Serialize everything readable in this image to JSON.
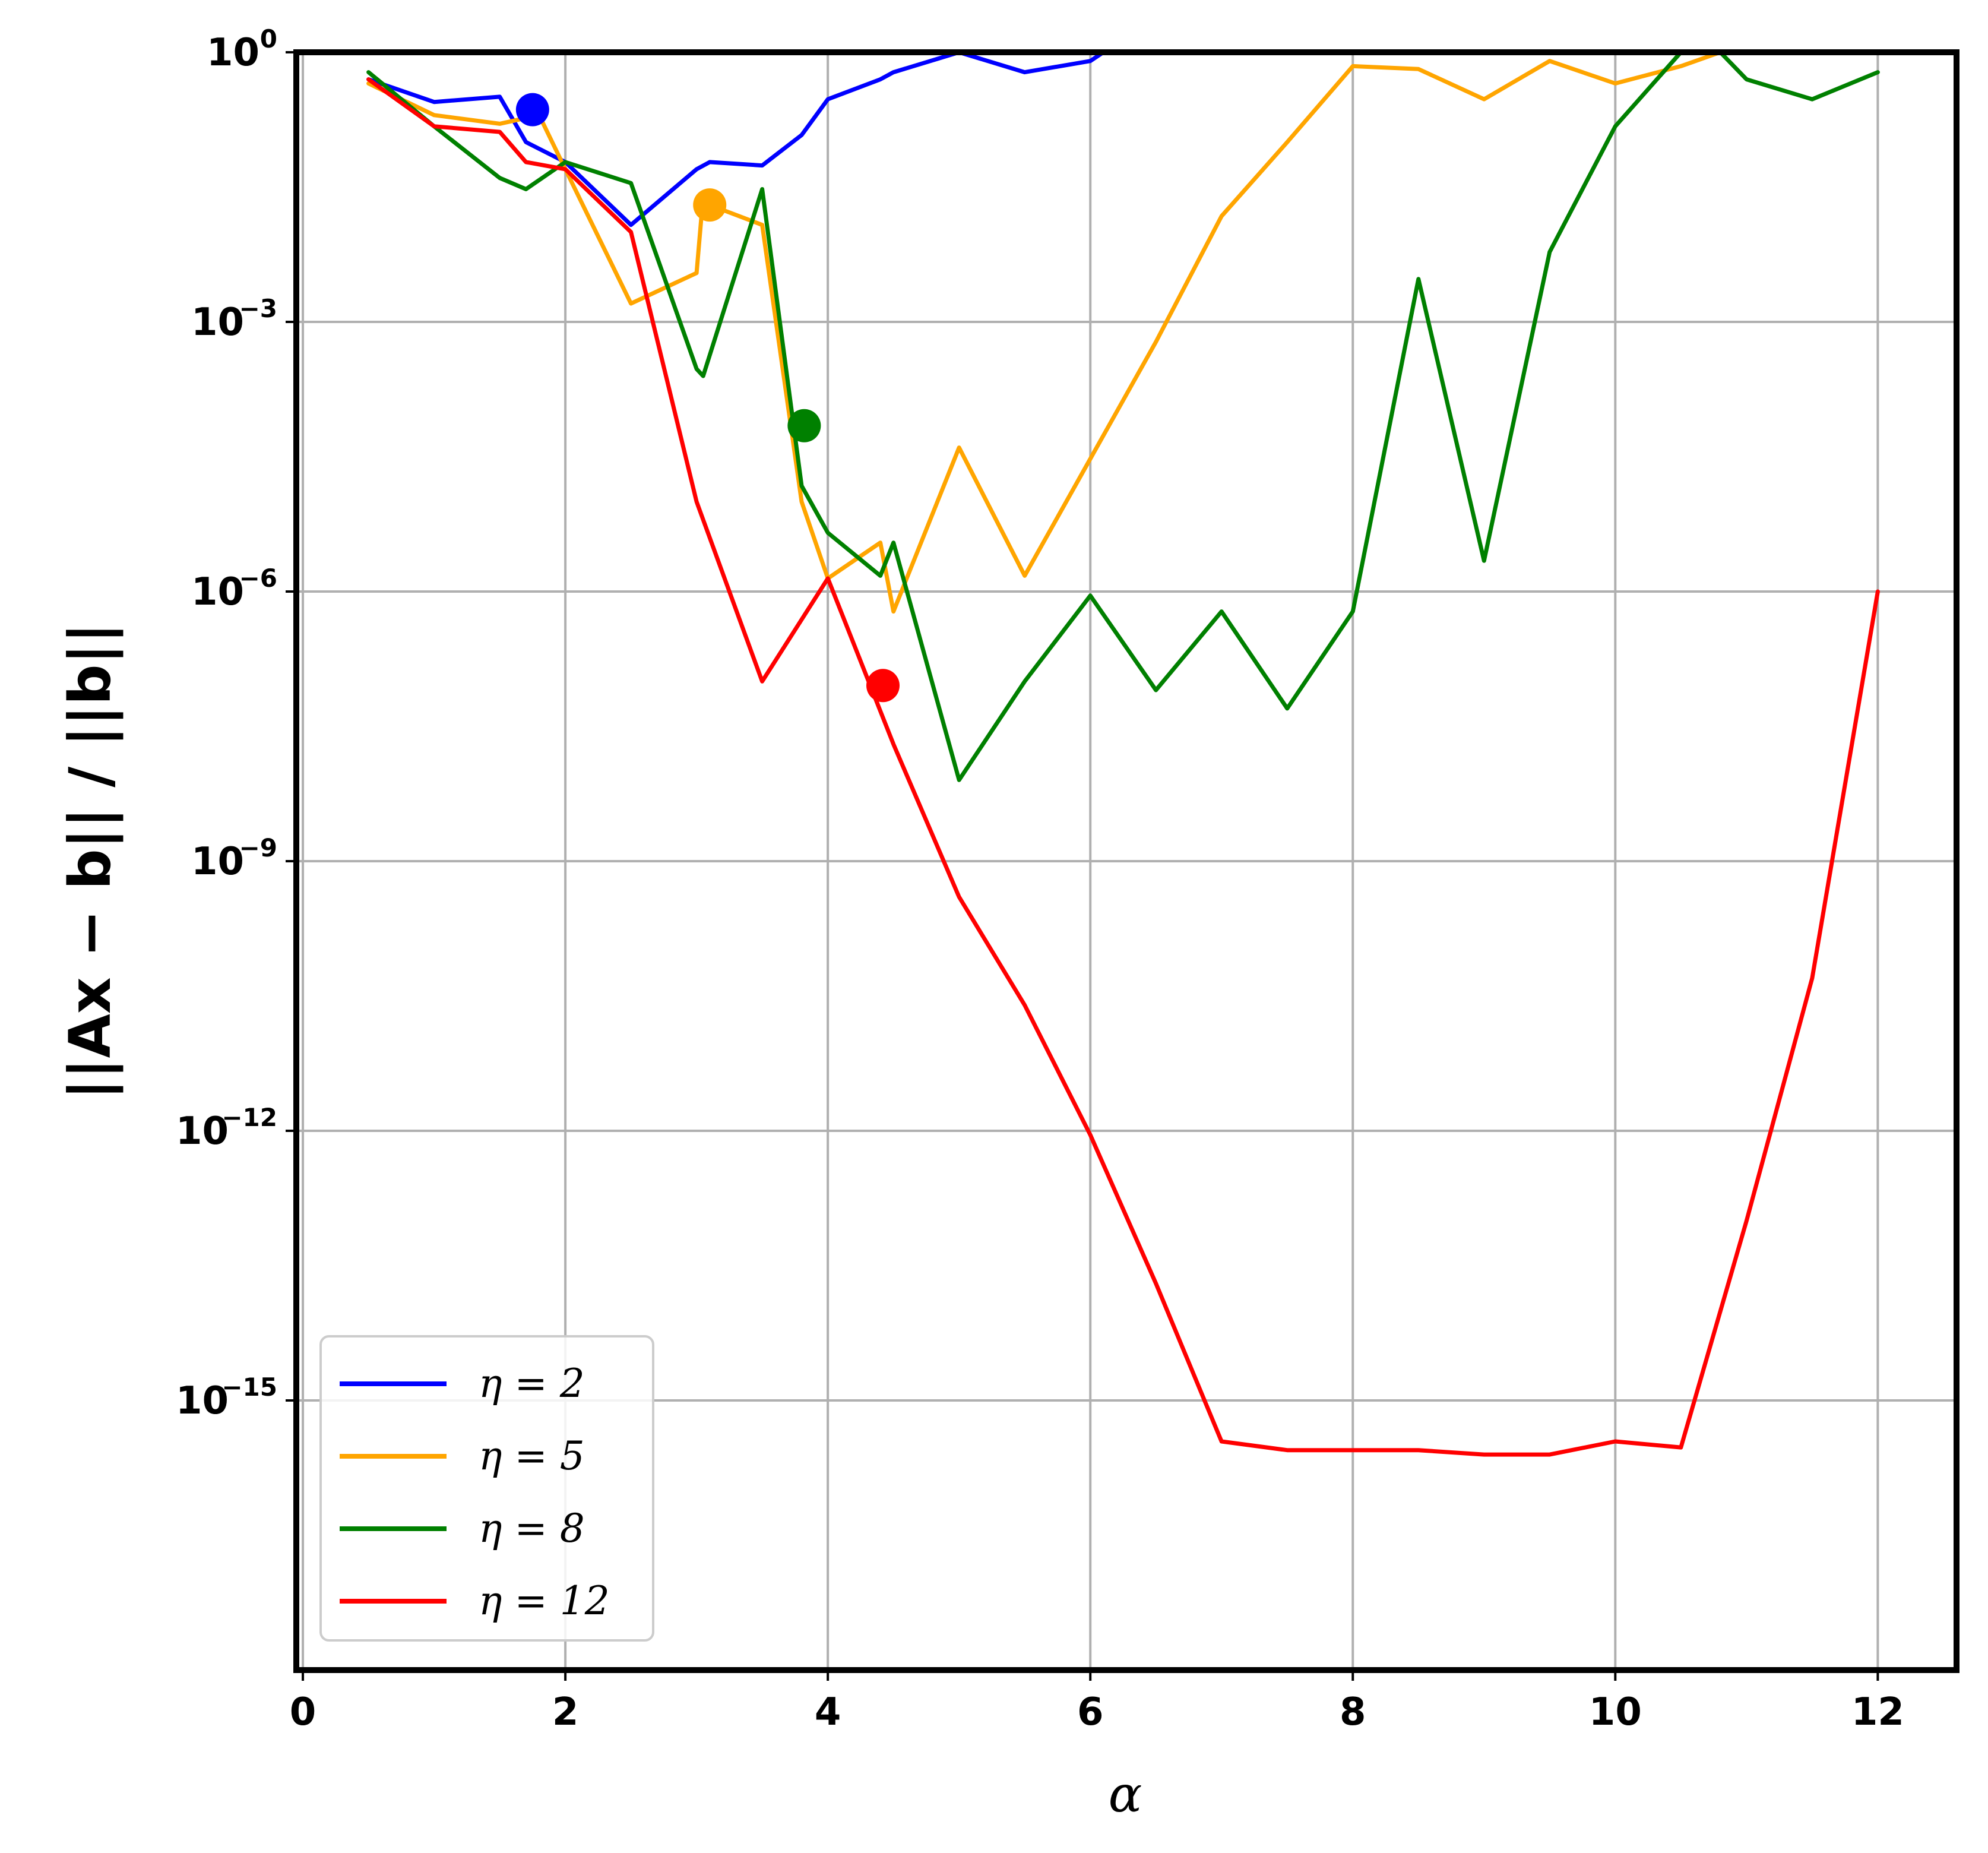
{
  "chart_data": {
    "type": "line",
    "title": "",
    "xlabel": "α",
    "ylabel": "||Ax − b|| / ||b||",
    "xscale": "linear",
    "yscale": "log",
    "xlim": [
      -0.05,
      12.6
    ],
    "ylim": [
      1e-18,
      1
    ],
    "xticks": [
      0,
      2,
      4,
      6,
      8,
      10,
      12
    ],
    "xtick_labels": [
      "0",
      "2",
      "4",
      "6",
      "8",
      "10",
      "12"
    ],
    "yticks": [
      1,
      0.001,
      1e-06,
      1e-09,
      1e-12,
      1e-15
    ],
    "ytick_labels": [
      {
        "base": "10",
        "exp": "0"
      },
      {
        "base": "10",
        "exp": "−3"
      },
      {
        "base": "10",
        "exp": "−6"
      },
      {
        "base": "10",
        "exp": "−9"
      },
      {
        "base": "10",
        "exp": "−12"
      },
      {
        "base": "10",
        "exp": "−15"
      }
    ],
    "grid": true,
    "legend_position": "lower-left",
    "series": [
      {
        "name": "η = 2",
        "color": "#0000ff",
        "x": [
          0.5,
          1.0,
          1.5,
          1.7,
          2.0,
          2.5,
          3.0,
          3.1,
          3.5,
          3.8,
          4.0,
          4.4,
          4.5,
          5.0,
          5.5,
          6.0,
          6.1
        ],
        "y": [
          0.5,
          0.28,
          0.32,
          0.1,
          0.06,
          0.012,
          0.05,
          0.06,
          0.055,
          0.12,
          0.3,
          0.5,
          0.6,
          1.0,
          0.6,
          0.8,
          1.0
        ],
        "marker": {
          "x": 1.75,
          "y": 0.23
        }
      },
      {
        "name": "η = 5",
        "color": "#ffa500",
        "x": [
          0.5,
          1.0,
          1.5,
          1.8,
          2.0,
          2.5,
          3.0,
          3.05,
          3.1,
          3.5,
          3.8,
          4.0,
          4.4,
          4.5,
          5.0,
          5.5,
          6.0,
          6.5,
          7.0,
          7.5,
          8.0,
          8.5,
          9.0,
          9.5,
          10.0,
          10.5,
          10.8
        ],
        "y": [
          0.45,
          0.2,
          0.16,
          0.2,
          0.05,
          0.0016,
          0.0035,
          0.025,
          0.02,
          0.012,
          1e-05,
          1.4e-06,
          3.5e-06,
          6e-07,
          4e-05,
          1.5e-06,
          3e-05,
          0.0006,
          0.015,
          0.1,
          0.7,
          0.65,
          0.3,
          0.8,
          0.45,
          0.7,
          1.0
        ],
        "marker": {
          "x": 3.1,
          "y": 0.02
        }
      },
      {
        "name": "η = 8",
        "color": "#008000",
        "x": [
          0.5,
          1.0,
          1.5,
          1.7,
          2.0,
          2.5,
          3.0,
          3.05,
          3.5,
          3.8,
          4.0,
          4.4,
          4.5,
          5.0,
          5.5,
          6.0,
          6.5,
          7.0,
          7.5,
          8.0,
          8.5,
          9.0,
          9.5,
          10.0,
          10.5,
          10.8,
          11.0,
          11.5,
          12.0
        ],
        "y": [
          0.6,
          0.15,
          0.04,
          0.03,
          0.06,
          0.035,
          0.0003,
          0.00025,
          0.03,
          1.5e-05,
          4.5e-06,
          1.5e-06,
          3.5e-06,
          8e-09,
          1e-07,
          9e-07,
          8e-08,
          6e-07,
          5e-08,
          6e-07,
          0.003,
          2.2e-06,
          0.006,
          0.15,
          1.0,
          1.0,
          0.5,
          0.3,
          0.6
        ],
        "marker": {
          "x": 3.82,
          "y": 7e-05
        }
      },
      {
        "name": "η = 12",
        "color": "#ff0000",
        "x": [
          0.5,
          1.0,
          1.5,
          1.7,
          2.0,
          2.5,
          3.0,
          3.5,
          4.0,
          4.5,
          5.0,
          5.5,
          6.0,
          6.5,
          7.0,
          7.5,
          8.0,
          8.5,
          9.0,
          9.5,
          10.0,
          10.5,
          11.0,
          11.5,
          12.0
        ],
        "y": [
          0.5,
          0.15,
          0.13,
          0.06,
          0.05,
          0.01,
          1e-05,
          1e-07,
          1.4e-06,
          2e-08,
          4e-10,
          2.5e-11,
          9e-13,
          2e-14,
          3.5e-16,
          2.8e-16,
          2.8e-16,
          2.8e-16,
          2.5e-16,
          2.5e-16,
          3.5e-16,
          3e-16,
          1e-13,
          5e-11,
          1e-06
        ],
        "marker": {
          "x": 4.42,
          "y": 9e-08
        }
      }
    ]
  }
}
